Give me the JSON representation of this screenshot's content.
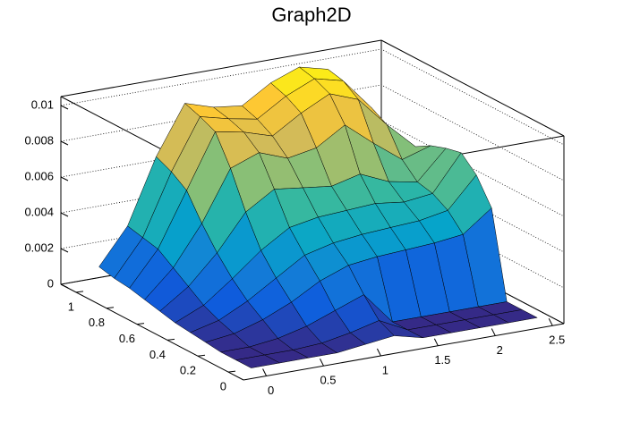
{
  "chart_data": {
    "type": "surface",
    "title": "Graph2D",
    "x": [
      0,
      0.25,
      0.5,
      0.75,
      1,
      1.25,
      1.5,
      1.75,
      2,
      2.25,
      2.5
    ],
    "y": [
      0,
      0.1,
      0.2,
      0.3,
      0.4,
      0.5,
      0.6,
      0.7,
      0.8,
      0.9,
      1
    ],
    "z": [
      [
        0,
        0,
        0,
        0,
        0.0002,
        0.0004,
        0,
        0,
        0,
        0,
        0
      ],
      [
        0,
        0,
        0,
        0.0001,
        0.0004,
        0.0008,
        0,
        0,
        0,
        0,
        0
      ],
      [
        0,
        0,
        0.0002,
        0.0006,
        0.0012,
        0.0018,
        0,
        0,
        0,
        0,
        0
      ],
      [
        0.0001,
        0.0003,
        0.0008,
        0.0015,
        0.0024,
        0.003,
        0.0032,
        0.0033,
        0.0034,
        0.0036,
        0.0048
      ],
      [
        0.0002,
        0.0006,
        0.0014,
        0.0024,
        0.0034,
        0.0038,
        0.004,
        0.0041,
        0.0042,
        0.0045,
        0.0062
      ],
      [
        0.0003,
        0.001,
        0.0022,
        0.0035,
        0.0045,
        0.0048,
        0.0049,
        0.005,
        0.0048,
        0.005,
        0.007
      ],
      [
        0.0005,
        0.0016,
        0.0032,
        0.0052,
        0.0062,
        0.006,
        0.0058,
        0.0062,
        0.0055,
        0.0052,
        0.0068
      ],
      [
        0.0007,
        0.0022,
        0.0044,
        0.0072,
        0.0078,
        0.0072,
        0.0075,
        0.0085,
        0.0072,
        0.006,
        0.0065
      ],
      [
        0.0009,
        0.0028,
        0.0058,
        0.0088,
        0.0085,
        0.008,
        0.009,
        0.0098,
        0.0092,
        0.0075,
        0.006
      ],
      [
        0.001,
        0.003,
        0.0064,
        0.0092,
        0.0088,
        0.0085,
        0.0095,
        0.0102,
        0.0098,
        0.008,
        0.0058
      ],
      [
        0.0012,
        0.0032,
        0.0068,
        0.0095,
        0.009,
        0.0088,
        0.0098,
        0.0104,
        0.01,
        0.0082,
        0.0055
      ]
    ],
    "xlim": [
      -0.2,
      2.6
    ],
    "ylim": [
      -0.1,
      1.1
    ],
    "zlim": [
      0,
      0.0105
    ],
    "xticks": [
      0,
      0.5,
      1,
      1.5,
      2,
      2.5
    ],
    "yticks": [
      0,
      0.2,
      0.4,
      0.6,
      0.8,
      1
    ],
    "zticks": [
      0,
      0.002,
      0.004,
      0.006,
      0.008,
      0.01
    ],
    "grid": true,
    "palette": [
      "#352a87",
      "#0f5cdd",
      "#1481d6",
      "#06a4ca",
      "#2eb7a4",
      "#87bf77",
      "#d1bb59",
      "#fec832",
      "#f9fb0e"
    ]
  }
}
